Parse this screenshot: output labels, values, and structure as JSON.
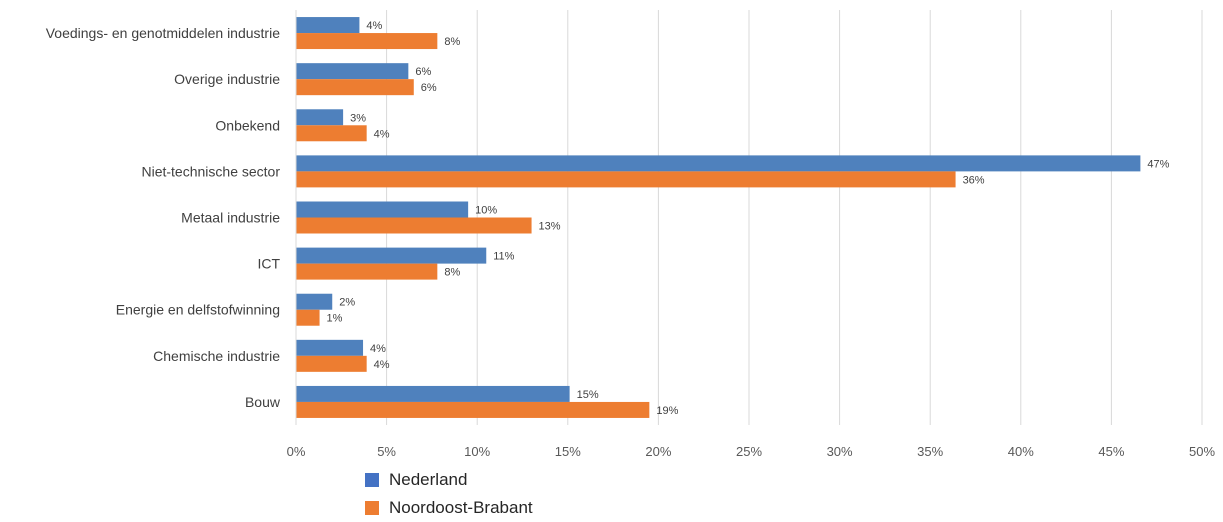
{
  "chart_data": {
    "type": "bar",
    "orientation": "horizontal",
    "categories": [
      "Voedings- en genotmiddelen industrie",
      "Overige industrie",
      "Onbekend",
      "Niet-technische sector",
      "Metaal industrie",
      "ICT",
      "Energie en delfstofwinning",
      "Chemische industrie",
      "Bouw"
    ],
    "series": [
      {
        "name": "Nederland",
        "color": "#4f81bd",
        "values": [
          3.5,
          6.2,
          2.6,
          46.6,
          9.5,
          10.5,
          2.0,
          3.7,
          15.1
        ],
        "labels": [
          "4%",
          "6%",
          "3%",
          "47%",
          "10%",
          "11%",
          "2%",
          "4%",
          "15%"
        ]
      },
      {
        "name": "Noordoost-Brabant",
        "color": "#ed7d31",
        "values": [
          7.8,
          6.5,
          3.9,
          36.4,
          13.0,
          7.8,
          1.3,
          3.9,
          19.5
        ],
        "labels": [
          "8%",
          "6%",
          "4%",
          "36%",
          "13%",
          "8%",
          "1%",
          "4%",
          "19%"
        ]
      }
    ],
    "xlim": [
      0,
      50
    ],
    "xticks": [
      0,
      5,
      10,
      15,
      20,
      25,
      30,
      35,
      40,
      45,
      50
    ],
    "xtick_labels": [
      "0%",
      "5%",
      "10%",
      "15%",
      "20%",
      "25%",
      "30%",
      "35%",
      "40%",
      "45%",
      "50%"
    ],
    "grid": true,
    "legend_position": "bottom-left",
    "legend_swatch_colors": [
      "#4472c4",
      "#ed7d31"
    ],
    "title": "",
    "xlabel": "",
    "ylabel": ""
  }
}
